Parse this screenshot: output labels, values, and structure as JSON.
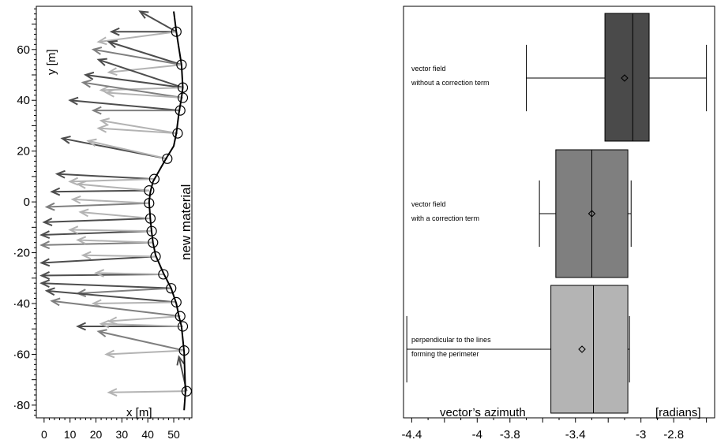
{
  "chart_data": [
    {
      "type": "scatter",
      "xlabel": "x [m]",
      "ylabel": "y [m]",
      "xlim": [
        -3,
        57
      ],
      "ylim": [
        -85,
        77
      ],
      "xticks": [
        0,
        10,
        20,
        30,
        40,
        50
      ],
      "yticks": [
        60,
        40,
        20,
        0,
        -20,
        -40,
        -60,
        -80
      ],
      "ytick_labels": [
        "60",
        "40",
        "20",
        "0",
        "·20",
        "·40",
        "·60",
        "·80"
      ],
      "annotation": "new material",
      "grid": false,
      "perimeter_line": [
        [
          50,
          75
        ],
        [
          51,
          67
        ],
        [
          53,
          54
        ],
        [
          53.5,
          45
        ],
        [
          53,
          41
        ],
        [
          52,
          35
        ],
        [
          51,
          27
        ],
        [
          50,
          22
        ],
        [
          47,
          17
        ],
        [
          42,
          8
        ],
        [
          41,
          4
        ],
        [
          40.5,
          0
        ],
        [
          41,
          -7
        ],
        [
          41.5,
          -12
        ],
        [
          42,
          -16
        ],
        [
          43,
          -21
        ],
        [
          46,
          -28
        ],
        [
          49,
          -34
        ],
        [
          51,
          -40
        ],
        [
          52,
          -45
        ],
        [
          53,
          -49
        ],
        [
          54,
          -59
        ],
        [
          54.5,
          -75
        ],
        [
          54,
          -82
        ]
      ],
      "markers": [
        [
          51,
          67
        ],
        [
          53,
          54
        ],
        [
          53.5,
          45
        ],
        [
          53.5,
          41
        ],
        [
          52.5,
          36
        ],
        [
          51.5,
          27
        ],
        [
          47.5,
          17
        ],
        [
          42.5,
          9
        ],
        [
          40.5,
          4.5
        ],
        [
          40.5,
          -0.5
        ],
        [
          41,
          -6.5
        ],
        [
          41.5,
          -11.5
        ],
        [
          42,
          -16
        ],
        [
          43,
          -21.5
        ],
        [
          46,
          -28.5
        ],
        [
          49,
          -34
        ],
        [
          51,
          -39.5
        ],
        [
          52.5,
          -45
        ],
        [
          53.5,
          -49
        ],
        [
          54,
          -58.5
        ],
        [
          55,
          -74.5
        ]
      ],
      "vectors": [
        {
          "x0": 51,
          "y0": 67,
          "x1": 37,
          "y1": 75,
          "shade": "dark"
        },
        {
          "x0": 51,
          "y0": 67,
          "x1": 26,
          "y1": 67,
          "shade": "dark"
        },
        {
          "x0": 51,
          "y0": 67,
          "x1": 21,
          "y1": 63,
          "shade": "light"
        },
        {
          "x0": 53,
          "y0": 54,
          "x1": 25,
          "y1": 63,
          "shade": "dark"
        },
        {
          "x0": 53,
          "y0": 54,
          "x1": 19,
          "y1": 60,
          "shade": "mid"
        },
        {
          "x0": 53,
          "y0": 54,
          "x1": 25,
          "y1": 51,
          "shade": "light"
        },
        {
          "x0": 53.5,
          "y0": 45,
          "x1": 21,
          "y1": 56,
          "shade": "dark"
        },
        {
          "x0": 53.5,
          "y0": 45,
          "x1": 16,
          "y1": 50,
          "shade": "dark"
        },
        {
          "x0": 53.5,
          "y0": 45,
          "x1": 22,
          "y1": 44,
          "shade": "light"
        },
        {
          "x0": 53.5,
          "y0": 41,
          "x1": 15,
          "y1": 47,
          "shade": "mid"
        },
        {
          "x0": 53.5,
          "y0": 41,
          "x1": 24,
          "y1": 43,
          "shade": "light"
        },
        {
          "x0": 52.5,
          "y0": 36,
          "x1": 10,
          "y1": 40,
          "shade": "dark"
        },
        {
          "x0": 52.5,
          "y0": 36,
          "x1": 19,
          "y1": 36,
          "shade": "mid"
        },
        {
          "x0": 51.5,
          "y0": 27,
          "x1": 22,
          "y1": 32,
          "shade": "light"
        },
        {
          "x0": 51.5,
          "y0": 27,
          "x1": 21,
          "y1": 29,
          "shade": "light"
        },
        {
          "x0": 47.5,
          "y0": 17,
          "x1": 7,
          "y1": 25,
          "shade": "dark"
        },
        {
          "x0": 47.5,
          "y0": 17,
          "x1": 17,
          "y1": 24,
          "shade": "light"
        },
        {
          "x0": 42.5,
          "y0": 9,
          "x1": 5,
          "y1": 11,
          "shade": "dark"
        },
        {
          "x0": 42.5,
          "y0": 9,
          "x1": 10,
          "y1": 8,
          "shade": "light"
        },
        {
          "x0": 40.5,
          "y0": 4.5,
          "x1": 3,
          "y1": 4,
          "shade": "dark"
        },
        {
          "x0": 40.5,
          "y0": 4.5,
          "x1": 13,
          "y1": 7,
          "shade": "light"
        },
        {
          "x0": 40.5,
          "y0": -0.5,
          "x1": 1,
          "y1": -2,
          "shade": "mid"
        },
        {
          "x0": 40.5,
          "y0": -0.5,
          "x1": 11,
          "y1": 1,
          "shade": "light"
        },
        {
          "x0": 41,
          "y0": -6.5,
          "x1": 0,
          "y1": -8,
          "shade": "dark"
        },
        {
          "x0": 41,
          "y0": -6.5,
          "x1": 14,
          "y1": -4,
          "shade": "light"
        },
        {
          "x0": 41.5,
          "y0": -11.5,
          "x1": -1,
          "y1": -13,
          "shade": "dark"
        },
        {
          "x0": 41.5,
          "y0": -11.5,
          "x1": 10,
          "y1": -11,
          "shade": "light"
        },
        {
          "x0": 42,
          "y0": -16,
          "x1": -1,
          "y1": -17,
          "shade": "mid"
        },
        {
          "x0": 42,
          "y0": -16,
          "x1": 13,
          "y1": -15,
          "shade": "light"
        },
        {
          "x0": 43,
          "y0": -21.5,
          "x1": -1,
          "y1": -24,
          "shade": "dark"
        },
        {
          "x0": 43,
          "y0": -21.5,
          "x1": 15,
          "y1": -21,
          "shade": "light"
        },
        {
          "x0": 46,
          "y0": -28.5,
          "x1": -1,
          "y1": -29,
          "shade": "dark"
        },
        {
          "x0": 46,
          "y0": -28.5,
          "x1": 20,
          "y1": -28,
          "shade": "light"
        },
        {
          "x0": 49,
          "y0": -34,
          "x1": -1,
          "y1": -32,
          "shade": "dark"
        },
        {
          "x0": 49,
          "y0": -34,
          "x1": 13,
          "y1": -36,
          "shade": "mid"
        },
        {
          "x0": 51,
          "y0": -39.5,
          "x1": 1,
          "y1": -35,
          "shade": "dark"
        },
        {
          "x0": 51,
          "y0": -39.5,
          "x1": 19,
          "y1": -40,
          "shade": "light"
        },
        {
          "x0": 52.5,
          "y0": -45,
          "x1": 3,
          "y1": -39,
          "shade": "mid"
        },
        {
          "x0": 52.5,
          "y0": -45,
          "x1": 25,
          "y1": -47,
          "shade": "light"
        },
        {
          "x0": 53.5,
          "y0": -49,
          "x1": 13,
          "y1": -49,
          "shade": "dark"
        },
        {
          "x0": 53.5,
          "y0": -49,
          "x1": 22,
          "y1": -48,
          "shade": "light"
        },
        {
          "x0": 54,
          "y0": -58.5,
          "x1": 21,
          "y1": -51,
          "shade": "mid"
        },
        {
          "x0": 54,
          "y0": -58.5,
          "x1": 24,
          "y1": -60,
          "shade": "light"
        },
        {
          "x0": 55,
          "y0": -74.5,
          "x1": 52,
          "y1": -61,
          "shade": "dark"
        },
        {
          "x0": 55,
          "y0": -74.5,
          "x1": 25,
          "y1": -75,
          "shade": "light"
        }
      ]
    },
    {
      "type": "box",
      "orientation": "horizontal",
      "xlabel": "vector’s azimuth",
      "xunit": "[radians]",
      "xlim": [
        -4.45,
        -2.55
      ],
      "xticks": [
        -4.4,
        -4,
        -3.8,
        -3.4,
        -3,
        -2.8
      ],
      "xtick_labels": [
        "-4.4",
        "-4",
        "-3.8",
        "-3.4",
        "-3",
        "-2.8"
      ],
      "series": [
        {
          "label_lines": [
            "vector field",
            "without a correction term"
          ],
          "whisker_low": -3.7,
          "q1": -3.22,
          "median": -3.05,
          "q3": -2.95,
          "whisker_high": -2.6,
          "mean": -3.1,
          "color": "#4a4a4a"
        },
        {
          "label_lines": [
            "vector field",
            "with a correction term"
          ],
          "whisker_low": -3.62,
          "q1": -3.52,
          "median": -3.3,
          "q3": -3.08,
          "whisker_high": -3.06,
          "mean": -3.3,
          "color": "#7f7f7f"
        },
        {
          "label_lines": [
            "perpendicular to the lines",
            "forming the perimeter"
          ],
          "whisker_low": -4.43,
          "q1": -3.55,
          "median": -3.29,
          "q3": -3.08,
          "whisker_high": -3.07,
          "mean": -3.36,
          "color": "#b4b4b4"
        }
      ]
    }
  ]
}
